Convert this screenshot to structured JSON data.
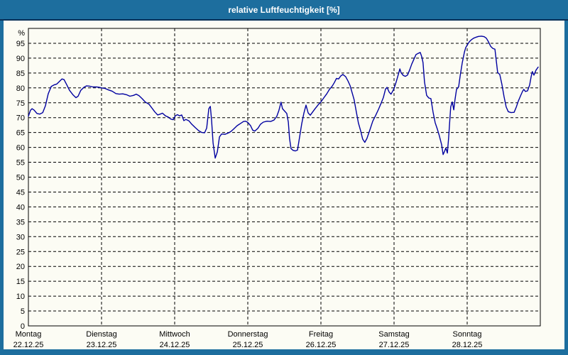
{
  "window": {
    "title": "relative Luftfeuchtigkeit [%]"
  },
  "colors": {
    "titlebar_bg": "#1d6e9e",
    "titlebar_text": "#ffffff",
    "frame": "#1d6e9e",
    "separator": "#083058",
    "content_bg": "#fcfcf4",
    "grid": "#000000",
    "axis_text": "#000000",
    "line": "#0000a0"
  },
  "chart_data": {
    "type": "line",
    "title": "relative Luftfeuchtigkeit [%]",
    "ylabel": "%",
    "ylim": [
      0,
      100
    ],
    "y_tick_step": 5,
    "y_tick_labels": [
      "0",
      "5",
      "10",
      "15",
      "20",
      "25",
      "30",
      "35",
      "40",
      "45",
      "50",
      "55",
      "60",
      "65",
      "70",
      "75",
      "80",
      "85",
      "90",
      "95"
    ],
    "y_top_label": "%",
    "grid": "dashed",
    "legend": "none",
    "x_axis": {
      "unit": "hours",
      "range_hours": [
        0,
        168
      ],
      "days": [
        {
          "name": "Montag",
          "date": "22.12.25"
        },
        {
          "name": "Dienstag",
          "date": "23.12.25"
        },
        {
          "name": "Mittwoch",
          "date": "24.12.25"
        },
        {
          "name": "Donnerstag",
          "date": "25.12.25"
        },
        {
          "name": "Freitag",
          "date": "26.12.25"
        },
        {
          "name": "Samstag",
          "date": "27.12.25"
        },
        {
          "name": "Sonntag",
          "date": "28.12.25"
        }
      ]
    },
    "series": [
      {
        "name": "relative Luftfeuchtigkeit",
        "color": "#0000a0",
        "points": [
          [
            0,
            70.5
          ],
          [
            0.7,
            72.5
          ],
          [
            1.2,
            73.0
          ],
          [
            1.9,
            72.5
          ],
          [
            2.8,
            71.4
          ],
          [
            3.7,
            71.2
          ],
          [
            4.7,
            71.7
          ],
          [
            5.6,
            74.0
          ],
          [
            6.5,
            78.0
          ],
          [
            7.5,
            80.5
          ],
          [
            8.4,
            81.0
          ],
          [
            9.3,
            81.3
          ],
          [
            10.3,
            82.3
          ],
          [
            11.0,
            83.0
          ],
          [
            11.7,
            82.8
          ],
          [
            12.6,
            81.0
          ],
          [
            13.5,
            79.2
          ],
          [
            14.7,
            77.6
          ],
          [
            15.6,
            76.7
          ],
          [
            16.3,
            77.2
          ],
          [
            17.2,
            79.2
          ],
          [
            18.2,
            80.2
          ],
          [
            19.1,
            80.7
          ],
          [
            20.0,
            80.6
          ],
          [
            21.2,
            80.3
          ],
          [
            22.4,
            80.3
          ],
          [
            23.3,
            80.2
          ],
          [
            24.0,
            80.0
          ],
          [
            25.2,
            79.8
          ],
          [
            26.3,
            79.3
          ],
          [
            27.5,
            78.9
          ],
          [
            28.7,
            78.1
          ],
          [
            29.8,
            77.9
          ],
          [
            31.0,
            78.0
          ],
          [
            32.2,
            77.7
          ],
          [
            33.3,
            77.2
          ],
          [
            34.5,
            77.5
          ],
          [
            35.4,
            77.9
          ],
          [
            36.3,
            77.4
          ],
          [
            37.3,
            76.4
          ],
          [
            38.4,
            75.2
          ],
          [
            39.6,
            74.5
          ],
          [
            40.5,
            73.3
          ],
          [
            41.5,
            71.9
          ],
          [
            42.4,
            70.9
          ],
          [
            43.3,
            71.2
          ],
          [
            44.0,
            71.5
          ],
          [
            45.0,
            70.6
          ],
          [
            45.9,
            70.2
          ],
          [
            46.8,
            69.5
          ],
          [
            47.5,
            69.3
          ],
          [
            48.2,
            70.6
          ],
          [
            48.9,
            71.0
          ],
          [
            49.6,
            70.6
          ],
          [
            50.3,
            70.9
          ],
          [
            51.0,
            69.0
          ],
          [
            51.7,
            69.4
          ],
          [
            52.7,
            68.9
          ],
          [
            53.6,
            67.8
          ],
          [
            54.8,
            66.6
          ],
          [
            55.9,
            65.6
          ],
          [
            56.9,
            65.0
          ],
          [
            57.8,
            64.9
          ],
          [
            58.5,
            66.5
          ],
          [
            59.2,
            73.0
          ],
          [
            59.7,
            73.8
          ],
          [
            60.1,
            69.5
          ],
          [
            60.6,
            61.5
          ],
          [
            61.3,
            56.4
          ],
          [
            62.0,
            58.5
          ],
          [
            62.7,
            63.5
          ],
          [
            63.4,
            64.5
          ],
          [
            64.5,
            64.4
          ],
          [
            65.5,
            64.8
          ],
          [
            66.4,
            65.3
          ],
          [
            67.3,
            66.1
          ],
          [
            68.5,
            67.3
          ],
          [
            69.7,
            68.1
          ],
          [
            70.6,
            68.7
          ],
          [
            71.3,
            68.8
          ],
          [
            72.0,
            68.4
          ],
          [
            72.9,
            67.3
          ],
          [
            73.6,
            65.8
          ],
          [
            74.3,
            65.5
          ],
          [
            75.3,
            66.4
          ],
          [
            76.2,
            67.8
          ],
          [
            77.1,
            68.5
          ],
          [
            78.3,
            68.8
          ],
          [
            79.5,
            68.7
          ],
          [
            80.6,
            69.2
          ],
          [
            81.5,
            70.4
          ],
          [
            82.2,
            72.4
          ],
          [
            82.9,
            75.2
          ],
          [
            83.4,
            73.0
          ],
          [
            84.1,
            72.2
          ],
          [
            84.8,
            71.4
          ],
          [
            85.3,
            68.5
          ],
          [
            85.7,
            63.0
          ],
          [
            86.2,
            59.6
          ],
          [
            86.9,
            59.0
          ],
          [
            87.6,
            58.8
          ],
          [
            88.3,
            59.1
          ],
          [
            89.0,
            63.5
          ],
          [
            89.7,
            68.0
          ],
          [
            90.4,
            71.5
          ],
          [
            91.1,
            74.2
          ],
          [
            91.8,
            71.6
          ],
          [
            92.5,
            70.8
          ],
          [
            93.2,
            71.8
          ],
          [
            94.1,
            73.0
          ],
          [
            95.1,
            74.3
          ],
          [
            96.0,
            75.3
          ],
          [
            96.9,
            76.6
          ],
          [
            97.9,
            78.0
          ],
          [
            98.8,
            79.5
          ],
          [
            99.7,
            80.6
          ],
          [
            100.4,
            81.8
          ],
          [
            101.1,
            83.2
          ],
          [
            101.8,
            83.0
          ],
          [
            102.5,
            84.0
          ],
          [
            103.2,
            84.5
          ],
          [
            104.1,
            83.8
          ],
          [
            104.9,
            82.3
          ],
          [
            105.6,
            80.7
          ],
          [
            106.2,
            78.5
          ],
          [
            106.9,
            76.0
          ],
          [
            107.6,
            72.0
          ],
          [
            108.3,
            68.2
          ],
          [
            109.0,
            65.7
          ],
          [
            109.7,
            62.8
          ],
          [
            110.4,
            61.7
          ],
          [
            111.1,
            63.0
          ],
          [
            112.1,
            66.0
          ],
          [
            113.0,
            68.8
          ],
          [
            113.9,
            70.6
          ],
          [
            114.9,
            72.8
          ],
          [
            115.8,
            75.0
          ],
          [
            116.5,
            76.8
          ],
          [
            117.2,
            79.6
          ],
          [
            117.7,
            80.2
          ],
          [
            118.4,
            78.6
          ],
          [
            119.0,
            77.9
          ],
          [
            119.5,
            78.8
          ],
          [
            120.0,
            79.8
          ],
          [
            120.7,
            82.0
          ],
          [
            121.4,
            84.5
          ],
          [
            121.9,
            86.4
          ],
          [
            122.3,
            85.1
          ],
          [
            123.0,
            84.2
          ],
          [
            123.7,
            83.9
          ],
          [
            124.4,
            84.3
          ],
          [
            125.1,
            86.0
          ],
          [
            125.8,
            88.0
          ],
          [
            126.6,
            89.8
          ],
          [
            127.2,
            91.2
          ],
          [
            127.9,
            91.6
          ],
          [
            128.6,
            91.9
          ],
          [
            129.1,
            90.4
          ],
          [
            129.5,
            88.5
          ],
          [
            130.0,
            82.0
          ],
          [
            130.7,
            77.5
          ],
          [
            131.4,
            76.6
          ],
          [
            132.1,
            76.4
          ],
          [
            132.8,
            71.9
          ],
          [
            133.5,
            68.3
          ],
          [
            134.2,
            66.2
          ],
          [
            134.9,
            63.8
          ],
          [
            135.6,
            60.9
          ],
          [
            136.1,
            57.6
          ],
          [
            136.5,
            58.5
          ],
          [
            137.0,
            59.8
          ],
          [
            137.5,
            58.1
          ],
          [
            137.9,
            63.0
          ],
          [
            138.6,
            73.6
          ],
          [
            139.1,
            75.3
          ],
          [
            139.6,
            72.6
          ],
          [
            140.0,
            76.0
          ],
          [
            140.5,
            79.5
          ],
          [
            141.2,
            80.4
          ],
          [
            141.7,
            84.0
          ],
          [
            142.4,
            88.5
          ],
          [
            143.1,
            92.0
          ],
          [
            143.5,
            93.5
          ],
          [
            144.0,
            94.4
          ],
          [
            144.7,
            95.5
          ],
          [
            145.4,
            96.2
          ],
          [
            146.1,
            96.7
          ],
          [
            146.8,
            97.0
          ],
          [
            147.7,
            97.3
          ],
          [
            148.7,
            97.4
          ],
          [
            149.6,
            97.2
          ],
          [
            150.3,
            96.7
          ],
          [
            151.0,
            95.5
          ],
          [
            151.7,
            94.0
          ],
          [
            152.4,
            93.3
          ],
          [
            153.1,
            93.0
          ],
          [
            153.5,
            89.5
          ],
          [
            154.0,
            85.2
          ],
          [
            154.7,
            84.5
          ],
          [
            155.4,
            81.2
          ],
          [
            156.1,
            77.1
          ],
          [
            156.8,
            73.6
          ],
          [
            157.5,
            72.0
          ],
          [
            158.4,
            71.7
          ],
          [
            159.4,
            71.8
          ],
          [
            160.1,
            73.5
          ],
          [
            160.8,
            75.6
          ],
          [
            161.5,
            77.3
          ],
          [
            162.2,
            78.9
          ],
          [
            162.6,
            79.5
          ],
          [
            163.1,
            78.8
          ],
          [
            163.8,
            79.0
          ],
          [
            164.5,
            81.0
          ],
          [
            165.0,
            83.8
          ],
          [
            165.4,
            85.5
          ],
          [
            165.9,
            84.3
          ],
          [
            166.6,
            86.0
          ],
          [
            167.3,
            87.0
          ]
        ]
      }
    ]
  }
}
